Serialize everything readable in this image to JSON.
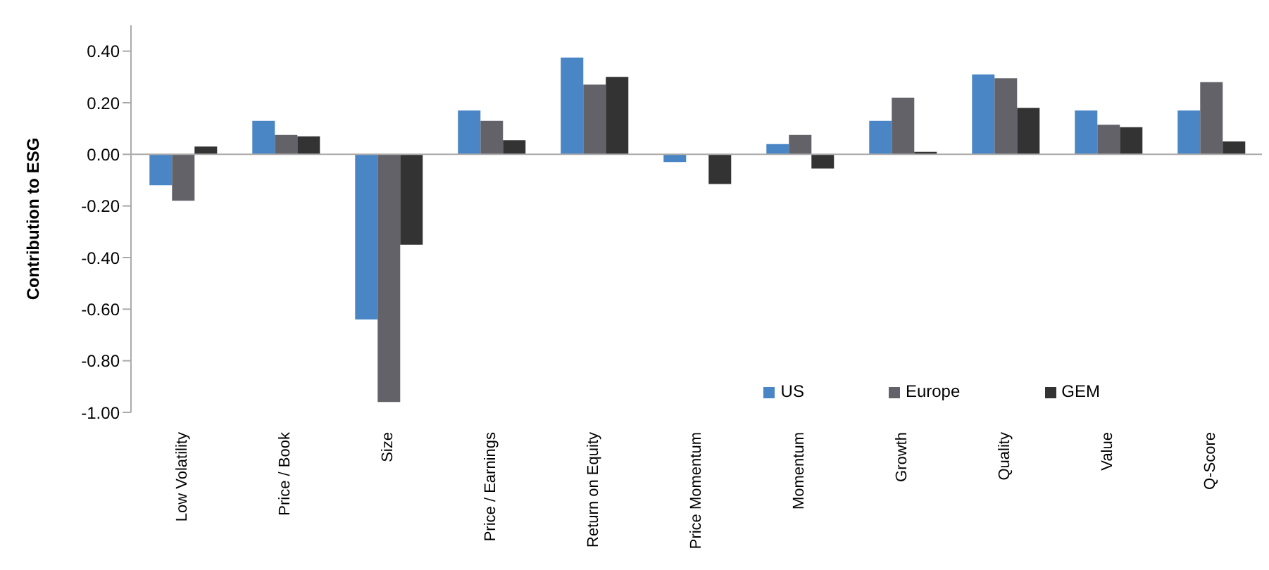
{
  "chart_data": {
    "type": "bar",
    "ylabel": "Contribution to ESG",
    "categories": [
      "Low Volatility",
      "Price / Book",
      "Size",
      "Price / Earnings",
      "Return on Equity",
      "Price Momentum",
      "Momentum",
      "Growth",
      "Quality",
      "Value",
      "Q-Score"
    ],
    "series": [
      {
        "name": "US",
        "color": "#4a86c5",
        "values": [
          -0.12,
          0.13,
          -0.64,
          0.17,
          0.375,
          -0.03,
          0.04,
          0.13,
          0.31,
          0.17,
          0.17
        ]
      },
      {
        "name": "Europe",
        "color": "#636268",
        "values": [
          -0.18,
          0.075,
          -0.96,
          0.13,
          0.27,
          0.0,
          0.075,
          0.22,
          0.295,
          0.115,
          0.28
        ]
      },
      {
        "name": "GEM",
        "color": "#333333",
        "values": [
          0.03,
          0.07,
          -0.35,
          0.055,
          0.3,
          -0.115,
          -0.055,
          0.01,
          0.18,
          0.105,
          0.05
        ]
      }
    ],
    "ylim": [
      -1.0,
      0.5
    ],
    "yticks": [
      {
        "value": -1.0,
        "label": "-1.00"
      },
      {
        "value": -0.8,
        "label": "-0.80"
      },
      {
        "value": -0.6,
        "label": "-0.60"
      },
      {
        "value": -0.4,
        "label": "-0.40"
      },
      {
        "value": -0.2,
        "label": "-0.20"
      },
      {
        "value": 0.0,
        "label": "0.00"
      },
      {
        "value": 0.2,
        "label": "0.20"
      },
      {
        "value": 0.4,
        "label": "0.40"
      }
    ],
    "legend": "bottom right"
  }
}
